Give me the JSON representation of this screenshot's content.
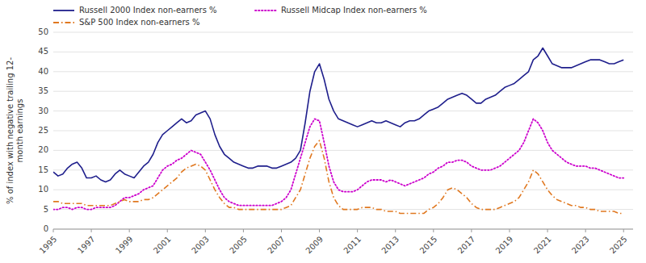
{
  "chart_data": {
    "type": "line",
    "ylabel": "% of index with negative trailing 12-\nmonth earnings",
    "xlim": [
      1995,
      2025.5
    ],
    "ylim": [
      0,
      50
    ],
    "yticks": [
      0,
      5,
      10,
      15,
      20,
      25,
      30,
      35,
      40,
      45,
      50
    ],
    "xticks": [
      1995,
      1997,
      1999,
      2001,
      2003,
      2005,
      2007,
      2009,
      2011,
      2013,
      2015,
      2017,
      2019,
      2021,
      2023,
      2025
    ],
    "grid": true,
    "legend": "upper left",
    "x": [
      1995.0,
      1995.25,
      1995.5,
      1995.75,
      1996.0,
      1996.25,
      1996.5,
      1996.75,
      1997.0,
      1997.25,
      1997.5,
      1997.75,
      1998.0,
      1998.25,
      1998.5,
      1998.75,
      1999.0,
      1999.25,
      1999.5,
      1999.75,
      2000.0,
      2000.25,
      2000.5,
      2000.75,
      2001.0,
      2001.25,
      2001.5,
      2001.75,
      2002.0,
      2002.25,
      2002.5,
      2002.75,
      2003.0,
      2003.25,
      2003.5,
      2003.75,
      2004.0,
      2004.25,
      2004.5,
      2004.75,
      2005.0,
      2005.25,
      2005.5,
      2005.75,
      2006.0,
      2006.25,
      2006.5,
      2006.75,
      2007.0,
      2007.25,
      2007.5,
      2007.75,
      2008.0,
      2008.25,
      2008.5,
      2008.75,
      2009.0,
      2009.25,
      2009.5,
      2009.75,
      2010.0,
      2010.25,
      2010.5,
      2010.75,
      2011.0,
      2011.25,
      2011.5,
      2011.75,
      2012.0,
      2012.25,
      2012.5,
      2012.75,
      2013.0,
      2013.25,
      2013.5,
      2013.75,
      2014.0,
      2014.25,
      2014.5,
      2014.75,
      2015.0,
      2015.25,
      2015.5,
      2015.75,
      2016.0,
      2016.25,
      2016.5,
      2016.75,
      2017.0,
      2017.25,
      2017.5,
      2017.75,
      2018.0,
      2018.25,
      2018.5,
      2018.75,
      2019.0,
      2019.25,
      2019.5,
      2019.75,
      2020.0,
      2020.25,
      2020.5,
      2020.75,
      2021.0,
      2021.25,
      2021.5,
      2021.75,
      2022.0,
      2022.25,
      2022.5,
      2022.75,
      2023.0,
      2023.25,
      2023.5,
      2023.75,
      2024.0,
      2024.25,
      2024.5,
      2024.75,
      2025.0
    ],
    "series": [
      {
        "name": "Russell 2000 Index non-earners %",
        "color": "#1f1f8c",
        "line_style": "solid",
        "values": [
          14.5,
          13.5,
          14.0,
          15.5,
          16.5,
          17.0,
          15.5,
          13.0,
          13.0,
          13.5,
          12.5,
          12.0,
          12.5,
          14.0,
          15.0,
          14.0,
          13.5,
          13.0,
          14.5,
          16.0,
          17.0,
          19.0,
          22.0,
          24.0,
          25.0,
          26.0,
          27.0,
          28.0,
          27.0,
          27.5,
          29.0,
          29.5,
          30.0,
          28.0,
          24.0,
          21.0,
          19.0,
          18.0,
          17.0,
          16.5,
          16.0,
          15.5,
          15.5,
          16.0,
          16.0,
          16.0,
          15.5,
          15.5,
          16.0,
          16.5,
          17.0,
          18.0,
          20.0,
          27.0,
          35.0,
          40.0,
          42.0,
          38.0,
          33.0,
          30.0,
          28.0,
          27.5,
          27.0,
          26.5,
          26.0,
          26.5,
          27.0,
          27.5,
          27.0,
          27.0,
          27.5,
          27.0,
          26.5,
          26.0,
          27.0,
          27.5,
          27.5,
          28.0,
          29.0,
          30.0,
          30.5,
          31.0,
          32.0,
          33.0,
          33.5,
          34.0,
          34.5,
          34.0,
          33.0,
          32.0,
          32.0,
          33.0,
          33.5,
          34.0,
          35.0,
          36.0,
          36.5,
          37.0,
          38.0,
          39.0,
          40.0,
          43.0,
          44.0,
          46.0,
          44.0,
          42.0,
          41.5,
          41.0,
          41.0,
          41.0,
          41.5,
          42.0,
          42.5,
          43.0,
          43.0,
          43.0,
          42.5,
          42.0,
          42.0,
          42.5,
          43.0
        ]
      },
      {
        "name": "Russell Midcap Index non-earners %",
        "color": "#cc00cc",
        "line_style": "dotted",
        "values": [
          5.0,
          5.0,
          5.5,
          5.5,
          5.0,
          5.5,
          5.5,
          5.0,
          5.0,
          5.5,
          5.5,
          5.5,
          5.5,
          6.0,
          7.0,
          8.0,
          8.0,
          8.5,
          9.0,
          10.0,
          10.5,
          11.0,
          13.0,
          15.0,
          16.0,
          16.5,
          17.5,
          18.0,
          19.0,
          20.0,
          19.5,
          19.0,
          17.0,
          15.0,
          12.5,
          10.0,
          8.0,
          7.0,
          6.5,
          6.0,
          6.0,
          6.0,
          6.0,
          6.0,
          6.0,
          6.0,
          6.0,
          6.5,
          7.0,
          8.0,
          10.0,
          14.0,
          18.0,
          22.0,
          26.0,
          28.0,
          27.5,
          22.0,
          16.0,
          12.0,
          10.0,
          9.5,
          9.5,
          9.5,
          10.0,
          11.0,
          12.0,
          12.5,
          12.5,
          12.5,
          12.0,
          12.5,
          12.0,
          11.5,
          11.0,
          11.5,
          12.0,
          12.5,
          13.0,
          14.0,
          14.5,
          15.5,
          16.0,
          17.0,
          17.0,
          17.5,
          17.5,
          17.0,
          16.0,
          15.5,
          15.0,
          15.0,
          15.0,
          15.5,
          16.0,
          17.0,
          18.0,
          19.0,
          20.0,
          22.0,
          25.0,
          28.0,
          27.0,
          25.0,
          22.0,
          20.0,
          19.0,
          18.0,
          17.0,
          16.5,
          16.0,
          16.0,
          16.0,
          15.5,
          15.5,
          15.0,
          14.5,
          14.0,
          13.5,
          13.0,
          13.0
        ]
      },
      {
        "name": "S&P 500 Index non-earners %",
        "color": "#e07820",
        "line_style": "dashdot",
        "values": [
          7.0,
          7.0,
          6.5,
          6.5,
          6.5,
          6.5,
          6.5,
          6.0,
          6.0,
          6.0,
          6.0,
          6.0,
          6.0,
          6.5,
          7.0,
          7.5,
          7.0,
          7.0,
          7.0,
          7.5,
          7.5,
          8.0,
          9.0,
          10.0,
          11.0,
          12.0,
          13.0,
          14.5,
          15.5,
          16.0,
          16.5,
          16.0,
          15.0,
          12.5,
          10.0,
          8.0,
          6.5,
          5.5,
          5.5,
          5.0,
          5.0,
          5.0,
          5.0,
          5.0,
          5.0,
          5.0,
          5.0,
          5.0,
          5.0,
          5.5,
          6.0,
          8.0,
          10.0,
          14.0,
          18.0,
          21.0,
          22.5,
          18.0,
          12.0,
          8.0,
          6.0,
          5.0,
          5.0,
          5.0,
          5.0,
          5.5,
          5.5,
          5.5,
          5.0,
          5.0,
          4.5,
          4.5,
          4.5,
          4.0,
          4.0,
          4.0,
          4.0,
          4.0,
          4.0,
          5.0,
          5.5,
          6.5,
          8.0,
          10.0,
          10.5,
          10.0,
          9.0,
          8.0,
          6.5,
          5.5,
          5.0,
          5.0,
          5.0,
          5.0,
          5.5,
          6.0,
          6.5,
          7.0,
          8.0,
          10.0,
          12.0,
          15.0,
          14.0,
          12.0,
          10.0,
          8.5,
          7.5,
          7.0,
          6.5,
          6.0,
          6.0,
          5.5,
          5.5,
          5.0,
          5.0,
          4.5,
          4.5,
          4.5,
          4.5,
          4.0,
          4.0
        ]
      }
    ]
  }
}
